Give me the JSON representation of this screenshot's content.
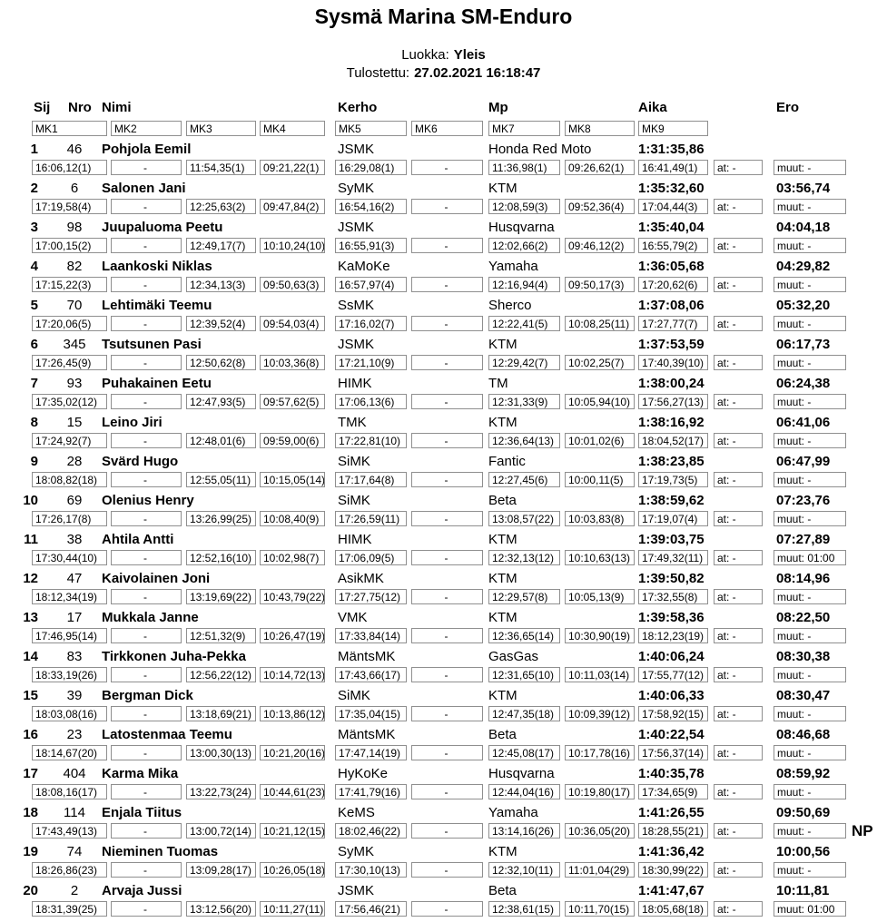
{
  "title": "Sysmä Marina SM-Enduro",
  "meta": {
    "luokka_label": "Luokka:",
    "luokka_value": "Yleis",
    "tulostettu_label": "Tulostettu:",
    "tulostettu_value": "27.02.2021 16:18:47"
  },
  "table": {
    "columns": [
      "Sij",
      "Nro",
      "Nimi",
      "Kerho",
      "Mp",
      "Aika",
      "Ero"
    ],
    "mk_headers": [
      "MK1",
      "MK2",
      "MK3",
      "MK4",
      "MK5",
      "MK6",
      "MK7",
      "MK8",
      "MK9"
    ],
    "rows": [
      {
        "sij": "1",
        "nro": "46",
        "nimi": "Pohjola Eemil",
        "kerho": "JSMK",
        "mp": "Honda Red Moto",
        "aika": "1:31:35,86",
        "ero": "",
        "mk": [
          "16:06,12(1)",
          "-",
          "11:54,35(1)",
          "09:21,22(1)",
          "16:29,08(1)",
          "-",
          "11:36,98(1)",
          "09:26,62(1)",
          "16:41,49(1)"
        ],
        "at": "at: -",
        "muut": "muut: -",
        "note": ""
      },
      {
        "sij": "2",
        "nro": "6",
        "nimi": "Salonen Jani",
        "kerho": "SyMK",
        "mp": "KTM",
        "aika": "1:35:32,60",
        "ero": "03:56,74",
        "mk": [
          "17:19,58(4)",
          "-",
          "12:25,63(2)",
          "09:47,84(2)",
          "16:54,16(2)",
          "-",
          "12:08,59(3)",
          "09:52,36(4)",
          "17:04,44(3)"
        ],
        "at": "at: -",
        "muut": "muut: -",
        "note": ""
      },
      {
        "sij": "3",
        "nro": "98",
        "nimi": "Juupaluoma Peetu",
        "kerho": "JSMK",
        "mp": "Husqvarna",
        "aika": "1:35:40,04",
        "ero": "04:04,18",
        "mk": [
          "17:00,15(2)",
          "-",
          "12:49,17(7)",
          "10:10,24(10)",
          "16:55,91(3)",
          "-",
          "12:02,66(2)",
          "09:46,12(2)",
          "16:55,79(2)"
        ],
        "at": "at: -",
        "muut": "muut: -",
        "note": ""
      },
      {
        "sij": "4",
        "nro": "82",
        "nimi": "Laankoski Niklas",
        "kerho": "KaMoKe",
        "mp": "Yamaha",
        "aika": "1:36:05,68",
        "ero": "04:29,82",
        "mk": [
          "17:15,22(3)",
          "-",
          "12:34,13(3)",
          "09:50,63(3)",
          "16:57,97(4)",
          "-",
          "12:16,94(4)",
          "09:50,17(3)",
          "17:20,62(6)"
        ],
        "at": "at: -",
        "muut": "muut: -",
        "note": ""
      },
      {
        "sij": "5",
        "nro": "70",
        "nimi": "Lehtimäki Teemu",
        "kerho": "SsMK",
        "mp": "Sherco",
        "aika": "1:37:08,06",
        "ero": "05:32,20",
        "mk": [
          "17:20,06(5)",
          "-",
          "12:39,52(4)",
          "09:54,03(4)",
          "17:16,02(7)",
          "-",
          "12:22,41(5)",
          "10:08,25(11)",
          "17:27,77(7)"
        ],
        "at": "at: -",
        "muut": "muut: -",
        "note": ""
      },
      {
        "sij": "6",
        "nro": "345",
        "nimi": "Tsutsunen Pasi",
        "kerho": "JSMK",
        "mp": "KTM",
        "aika": "1:37:53,59",
        "ero": "06:17,73",
        "mk": [
          "17:26,45(9)",
          "-",
          "12:50,62(8)",
          "10:03,36(8)",
          "17:21,10(9)",
          "-",
          "12:29,42(7)",
          "10:02,25(7)",
          "17:40,39(10)"
        ],
        "at": "at: -",
        "muut": "muut: -",
        "note": ""
      },
      {
        "sij": "7",
        "nro": "93",
        "nimi": "Puhakainen Eetu",
        "kerho": "HIMK",
        "mp": "TM",
        "aika": "1:38:00,24",
        "ero": "06:24,38",
        "mk": [
          "17:35,02(12)",
          "-",
          "12:47,93(5)",
          "09:57,62(5)",
          "17:06,13(6)",
          "-",
          "12:31,33(9)",
          "10:05,94(10)",
          "17:56,27(13)"
        ],
        "at": "at: -",
        "muut": "muut: -",
        "note": ""
      },
      {
        "sij": "8",
        "nro": "15",
        "nimi": "Leino Jiri",
        "kerho": "TMK",
        "mp": "KTM",
        "aika": "1:38:16,92",
        "ero": "06:41,06",
        "mk": [
          "17:24,92(7)",
          "-",
          "12:48,01(6)",
          "09:59,00(6)",
          "17:22,81(10)",
          "-",
          "12:36,64(13)",
          "10:01,02(6)",
          "18:04,52(17)"
        ],
        "at": "at: -",
        "muut": "muut: -",
        "note": ""
      },
      {
        "sij": "9",
        "nro": "28",
        "nimi": "Svärd Hugo",
        "kerho": "SiMK",
        "mp": "Fantic",
        "aika": "1:38:23,85",
        "ero": "06:47,99",
        "mk": [
          "18:08,82(18)",
          "-",
          "12:55,05(11)",
          "10:15,05(14)",
          "17:17,64(8)",
          "-",
          "12:27,45(6)",
          "10:00,11(5)",
          "17:19,73(5)"
        ],
        "at": "at: -",
        "muut": "muut: -",
        "note": ""
      },
      {
        "sij": "10",
        "nro": "69",
        "nimi": "Olenius Henry",
        "kerho": "SiMK",
        "mp": "Beta",
        "aika": "1:38:59,62",
        "ero": "07:23,76",
        "mk": [
          "17:26,17(8)",
          "-",
          "13:26,99(25)",
          "10:08,40(9)",
          "17:26,59(11)",
          "-",
          "13:08,57(22)",
          "10:03,83(8)",
          "17:19,07(4)"
        ],
        "at": "at: -",
        "muut": "muut: -",
        "note": ""
      },
      {
        "sij": "11",
        "nro": "38",
        "nimi": "Ahtila Antti",
        "kerho": "HIMK",
        "mp": "KTM",
        "aika": "1:39:03,75",
        "ero": "07:27,89",
        "mk": [
          "17:30,44(10)",
          "-",
          "12:52,16(10)",
          "10:02,98(7)",
          "17:06,09(5)",
          "-",
          "12:32,13(12)",
          "10:10,63(13)",
          "17:49,32(11)"
        ],
        "at": "at: -",
        "muut": "muut: 01:00",
        "note": ""
      },
      {
        "sij": "12",
        "nro": "47",
        "nimi": "Kaivolainen Joni",
        "kerho": "AsikMK",
        "mp": "KTM",
        "aika": "1:39:50,82",
        "ero": "08:14,96",
        "mk": [
          "18:12,34(19)",
          "-",
          "13:19,69(22)",
          "10:43,79(22)",
          "17:27,75(12)",
          "-",
          "12:29,57(8)",
          "10:05,13(9)",
          "17:32,55(8)"
        ],
        "at": "at: -",
        "muut": "muut: -",
        "note": ""
      },
      {
        "sij": "13",
        "nro": "17",
        "nimi": "Mukkala Janne",
        "kerho": "VMK",
        "mp": "KTM",
        "aika": "1:39:58,36",
        "ero": "08:22,50",
        "mk": [
          "17:46,95(14)",
          "-",
          "12:51,32(9)",
          "10:26,47(19)",
          "17:33,84(14)",
          "-",
          "12:36,65(14)",
          "10:30,90(19)",
          "18:12,23(19)"
        ],
        "at": "at: -",
        "muut": "muut: -",
        "note": ""
      },
      {
        "sij": "14",
        "nro": "83",
        "nimi": "Tirkkonen Juha-Pekka",
        "kerho": "MäntsMK",
        "mp": "GasGas",
        "aika": "1:40:06,24",
        "ero": "08:30,38",
        "mk": [
          "18:33,19(26)",
          "-",
          "12:56,22(12)",
          "10:14,72(13)",
          "17:43,66(17)",
          "-",
          "12:31,65(10)",
          "10:11,03(14)",
          "17:55,77(12)"
        ],
        "at": "at: -",
        "muut": "muut: -",
        "note": ""
      },
      {
        "sij": "15",
        "nro": "39",
        "nimi": "Bergman Dick",
        "kerho": "SiMK",
        "mp": "KTM",
        "aika": "1:40:06,33",
        "ero": "08:30,47",
        "mk": [
          "18:03,08(16)",
          "-",
          "13:18,69(21)",
          "10:13,86(12)",
          "17:35,04(15)",
          "-",
          "12:47,35(18)",
          "10:09,39(12)",
          "17:58,92(15)"
        ],
        "at": "at: -",
        "muut": "muut: -",
        "note": ""
      },
      {
        "sij": "16",
        "nro": "23",
        "nimi": "Latostenmaa Teemu",
        "kerho": "MäntsMK",
        "mp": "Beta",
        "aika": "1:40:22,54",
        "ero": "08:46,68",
        "mk": [
          "18:14,67(20)",
          "-",
          "13:00,30(13)",
          "10:21,20(16)",
          "17:47,14(19)",
          "-",
          "12:45,08(17)",
          "10:17,78(16)",
          "17:56,37(14)"
        ],
        "at": "at: -",
        "muut": "muut: -",
        "note": ""
      },
      {
        "sij": "17",
        "nro": "404",
        "nimi": "Karma Mika",
        "kerho": "HyKoKe",
        "mp": "Husqvarna",
        "aika": "1:40:35,78",
        "ero": "08:59,92",
        "mk": [
          "18:08,16(17)",
          "-",
          "13:22,73(24)",
          "10:44,61(23)",
          "17:41,79(16)",
          "-",
          "12:44,04(16)",
          "10:19,80(17)",
          "17:34,65(9)"
        ],
        "at": "at: -",
        "muut": "muut: -",
        "note": ""
      },
      {
        "sij": "18",
        "nro": "114",
        "nimi": "Enjala Tiitus",
        "kerho": "KeMS",
        "mp": "Yamaha",
        "aika": "1:41:26,55",
        "ero": "09:50,69",
        "mk": [
          "17:43,49(13)",
          "-",
          "13:00,72(14)",
          "10:21,12(15)",
          "18:02,46(22)",
          "-",
          "13:14,16(26)",
          "10:36,05(20)",
          "18:28,55(21)"
        ],
        "at": "at: -",
        "muut": "muut: -",
        "note": "NP"
      },
      {
        "sij": "19",
        "nro": "74",
        "nimi": "Nieminen Tuomas",
        "kerho": "SyMK",
        "mp": "KTM",
        "aika": "1:41:36,42",
        "ero": "10:00,56",
        "mk": [
          "18:26,86(23)",
          "-",
          "13:09,28(17)",
          "10:26,05(18)",
          "17:30,10(13)",
          "-",
          "12:32,10(11)",
          "11:01,04(29)",
          "18:30,99(22)"
        ],
        "at": "at: -",
        "muut": "muut: -",
        "note": ""
      },
      {
        "sij": "20",
        "nro": "2",
        "nimi": "Arvaja Jussi",
        "kerho": "JSMK",
        "mp": "Beta",
        "aika": "1:41:47,67",
        "ero": "10:11,81",
        "mk": [
          "18:31,39(25)",
          "-",
          "13:12,56(20)",
          "10:11,27(11)",
          "17:56,46(21)",
          "-",
          "12:38,61(15)",
          "10:11,70(15)",
          "18:05,68(18)"
        ],
        "at": "at: -",
        "muut": "muut: 01:00",
        "note": ""
      }
    ]
  }
}
